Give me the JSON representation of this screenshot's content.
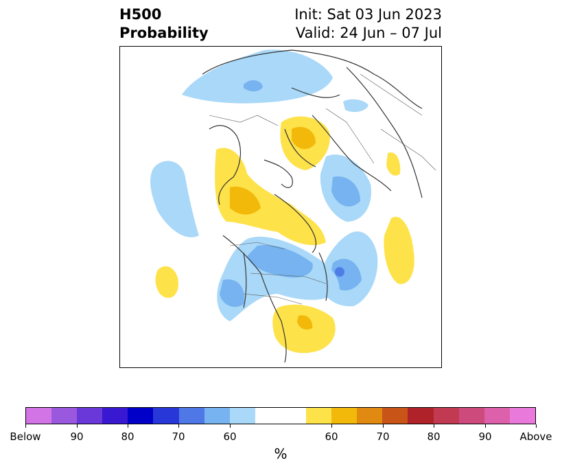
{
  "header": {
    "title_line1": "H500",
    "title_line2": "Probability",
    "init": "Init: Sat 03 Jun 2023",
    "valid": "Valid: 24 Jun – 07 Jul"
  },
  "map": {
    "projection": "north-polar-stereographic",
    "legend_colors": {
      "light_blue": "#a9d8f8",
      "mid_blue": "#76b3f0",
      "blue": "#4f7de6",
      "light_yellow": "#fde24a",
      "yellow": "#f2b90a"
    }
  },
  "colorbar": {
    "colors": [
      "#d274e6",
      "#9a58de",
      "#6a38d8",
      "#3818d0",
      "#0000c8",
      "#2838d8",
      "#4f78e6",
      "#76b3f0",
      "#a9d8f8",
      "#ffffff",
      "#ffffff",
      "#fde24a",
      "#f2b90a",
      "#e08a12",
      "#c85418",
      "#b0222a",
      "#c23a52",
      "#cc4a7c",
      "#dc60aa",
      "#e97adc"
    ],
    "labels": [
      "Below",
      "90",
      "80",
      "70",
      "60",
      "60",
      "70",
      "80",
      "90",
      "Above"
    ],
    "units": "%"
  }
}
